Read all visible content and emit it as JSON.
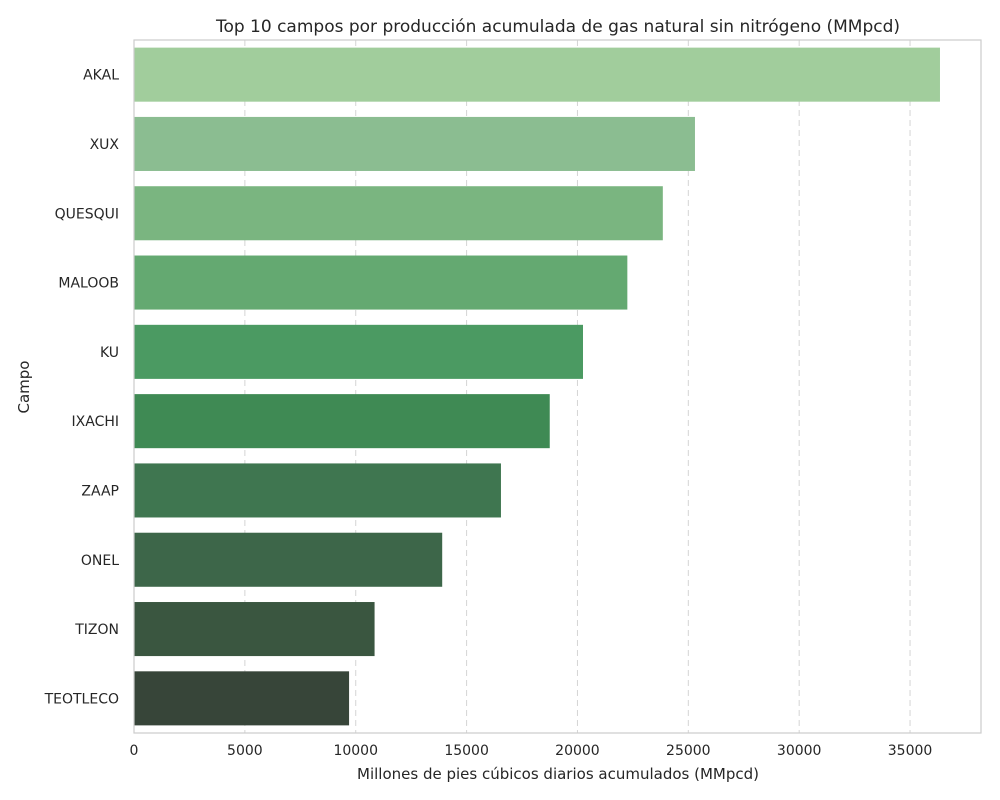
{
  "chart_data": {
    "type": "bar",
    "orientation": "horizontal",
    "title": "Top 10 campos por producción acumulada de gas natural sin nitrógeno (MMpcd)",
    "xlabel": "Millones de pies cúbicos diarios acumulados (MMpcd)",
    "ylabel": "Campo",
    "categories": [
      "AKAL",
      "XUX",
      "QUESQUI",
      "MALOOB",
      "KU",
      "IXACHI",
      "ZAAP",
      "ONEL",
      "TIZON",
      "TEOTLECO"
    ],
    "values": [
      36350,
      25300,
      23850,
      22250,
      20250,
      18750,
      16550,
      13900,
      10850,
      9700
    ],
    "colors": [
      "#a1cd9c",
      "#8bbd91",
      "#7ab580",
      "#64a971",
      "#4b9a62",
      "#3f8a54",
      "#3f7650",
      "#3d6649",
      "#3a5640",
      "#374539"
    ],
    "xlim": [
      0,
      38200
    ],
    "xticks": [
      0,
      5000,
      10000,
      15000,
      20000,
      25000,
      30000,
      35000
    ],
    "grid": "x-dashed",
    "legend": "none"
  }
}
